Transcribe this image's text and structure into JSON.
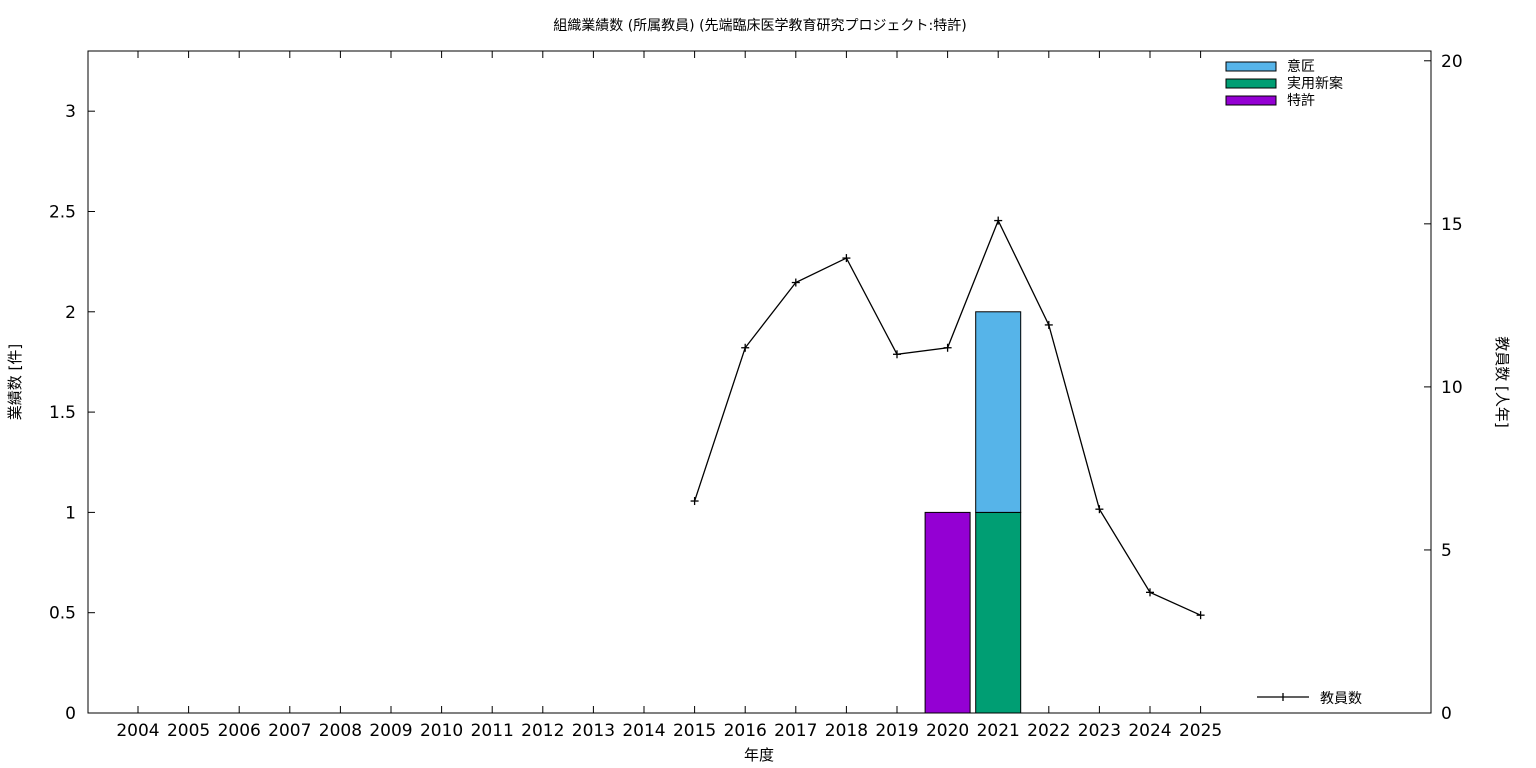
{
  "chart_data": {
    "type": "bar",
    "title": "組織業績数 (所属教員) (先端臨床医学教育研究プロジェクト:特許)",
    "xlabel": "年度",
    "ylabel": "業績数 [件]",
    "y2label": "教員数 [人年]",
    "categories": [
      "2004",
      "2005",
      "2006",
      "2007",
      "2008",
      "2009",
      "2010",
      "2011",
      "2012",
      "2013",
      "2014",
      "2015",
      "2016",
      "2017",
      "2018",
      "2019",
      "2020",
      "2021",
      "2022",
      "2023",
      "2024",
      "2025"
    ],
    "ylim": [
      0,
      3.3
    ],
    "y_ticks": [
      "0",
      "0.5",
      "1",
      "1.5",
      "2",
      "2.5",
      "3"
    ],
    "y2lim": [
      0,
      20.3
    ],
    "y2_ticks": [
      "0",
      "5",
      "10",
      "15",
      "20"
    ],
    "bar_series": [
      {
        "name": "特許",
        "color": "#9400d3",
        "values": [
          0,
          0,
          0,
          0,
          0,
          0,
          0,
          0,
          0,
          0,
          0,
          0,
          0,
          0,
          0,
          0,
          1,
          0,
          0,
          0,
          0,
          0
        ]
      },
      {
        "name": "実用新案",
        "color": "#009e73",
        "values": [
          0,
          0,
          0,
          0,
          0,
          0,
          0,
          0,
          0,
          0,
          0,
          0,
          0,
          0,
          0,
          0,
          0,
          1,
          0,
          0,
          0,
          0
        ]
      },
      {
        "name": "意匠",
        "color": "#56b4e9",
        "values": [
          0,
          0,
          0,
          0,
          0,
          0,
          0,
          0,
          0,
          0,
          0,
          0,
          0,
          0,
          0,
          0,
          0,
          1,
          0,
          0,
          0,
          0
        ]
      }
    ],
    "legend_order": [
      "意匠",
      "実用新案",
      "特許"
    ],
    "line_series": {
      "name": "教員数",
      "axis": "y2",
      "color": "#000000",
      "x": [
        "2015",
        "2016",
        "2017",
        "2018",
        "2019",
        "2020",
        "2021",
        "2022",
        "2023",
        "2024",
        "2025"
      ],
      "values": [
        6.5,
        11.2,
        13.2,
        13.95,
        11.0,
        11.2,
        15.1,
        11.9,
        6.25,
        3.7,
        3.0
      ]
    },
    "legend_placement": "top-right",
    "line_legend_placement": "bottom-right",
    "grid": false
  }
}
